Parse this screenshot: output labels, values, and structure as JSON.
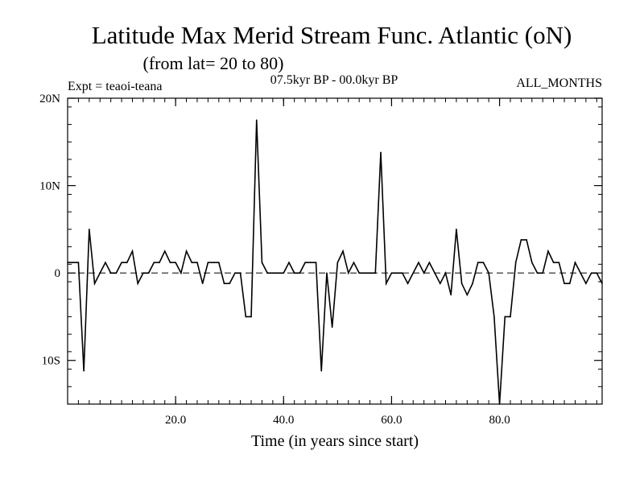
{
  "chart_data": {
    "type": "line",
    "title": "Latitude Max Merid Stream Func. Atlantic (oN)",
    "subtitle": "(from lat= 20 to 80)",
    "left_note": "Expt = teaoi-teana",
    "center_note": "07.5kyr BP - 00.0kyr BP",
    "right_note": "ALL_MONTHS",
    "xlabel": "Time (in years since start)",
    "ylabel": "",
    "xlim": [
      0,
      99
    ],
    "ylim": [
      -15,
      20
    ],
    "x_ticks": [
      20,
      40,
      60,
      80
    ],
    "x_tick_labels": [
      "20.0",
      "40.0",
      "60.0",
      "80.0"
    ],
    "y_ticks": [
      20,
      10,
      0,
      -10
    ],
    "y_tick_labels": [
      "20N",
      "10N",
      "0",
      "10S"
    ],
    "reference_line_y": 0,
    "series": [
      {
        "name": "teaoi-teana",
        "x": [
          0,
          1,
          2,
          3,
          4,
          5,
          6,
          7,
          8,
          9,
          10,
          11,
          12,
          13,
          14,
          15,
          16,
          17,
          18,
          19,
          20,
          21,
          22,
          23,
          24,
          25,
          26,
          27,
          28,
          29,
          30,
          31,
          32,
          33,
          34,
          35,
          36,
          37,
          38,
          39,
          40,
          41,
          42,
          43,
          44,
          45,
          46,
          47,
          48,
          49,
          50,
          51,
          52,
          53,
          54,
          55,
          56,
          57,
          58,
          59,
          60,
          61,
          62,
          63,
          64,
          65,
          66,
          67,
          68,
          69,
          70,
          71,
          72,
          73,
          74,
          75,
          76,
          77,
          78,
          79,
          80,
          81,
          82,
          83,
          84,
          85,
          86,
          87,
          88,
          89,
          90,
          91,
          92,
          93,
          94,
          95,
          96,
          97,
          98,
          99
        ],
        "values": [
          1.2,
          1.2,
          1.2,
          -11.2,
          5.0,
          -1.2,
          0.0,
          1.2,
          0.0,
          0.0,
          1.2,
          1.2,
          2.5,
          -1.2,
          0.0,
          0.0,
          1.2,
          1.2,
          2.5,
          1.2,
          1.2,
          0.0,
          2.5,
          1.2,
          1.2,
          -1.2,
          1.2,
          1.2,
          1.2,
          -1.2,
          -1.2,
          0.0,
          0.0,
          -5.0,
          -5.0,
          17.5,
          1.2,
          0.0,
          0.0,
          0.0,
          0.0,
          1.2,
          0.0,
          0.0,
          1.2,
          1.2,
          1.2,
          -11.2,
          0.0,
          -6.2,
          1.2,
          2.5,
          0.0,
          1.2,
          0.0,
          0.0,
          0.0,
          0.0,
          13.8,
          -1.2,
          0.0,
          0.0,
          0.0,
          -1.2,
          0.0,
          1.2,
          0.0,
          1.2,
          0.0,
          -1.2,
          0.0,
          -2.5,
          5.0,
          -1.2,
          -2.5,
          -1.2,
          1.2,
          1.2,
          0.0,
          -5.0,
          -15.0,
          -5.0,
          -5.0,
          1.2,
          3.8,
          3.8,
          1.2,
          0.0,
          0.0,
          2.5,
          1.2,
          1.2,
          -1.2,
          -1.2,
          1.2,
          0.0,
          -1.2,
          0.0,
          0.0,
          -1.2
        ]
      }
    ]
  }
}
